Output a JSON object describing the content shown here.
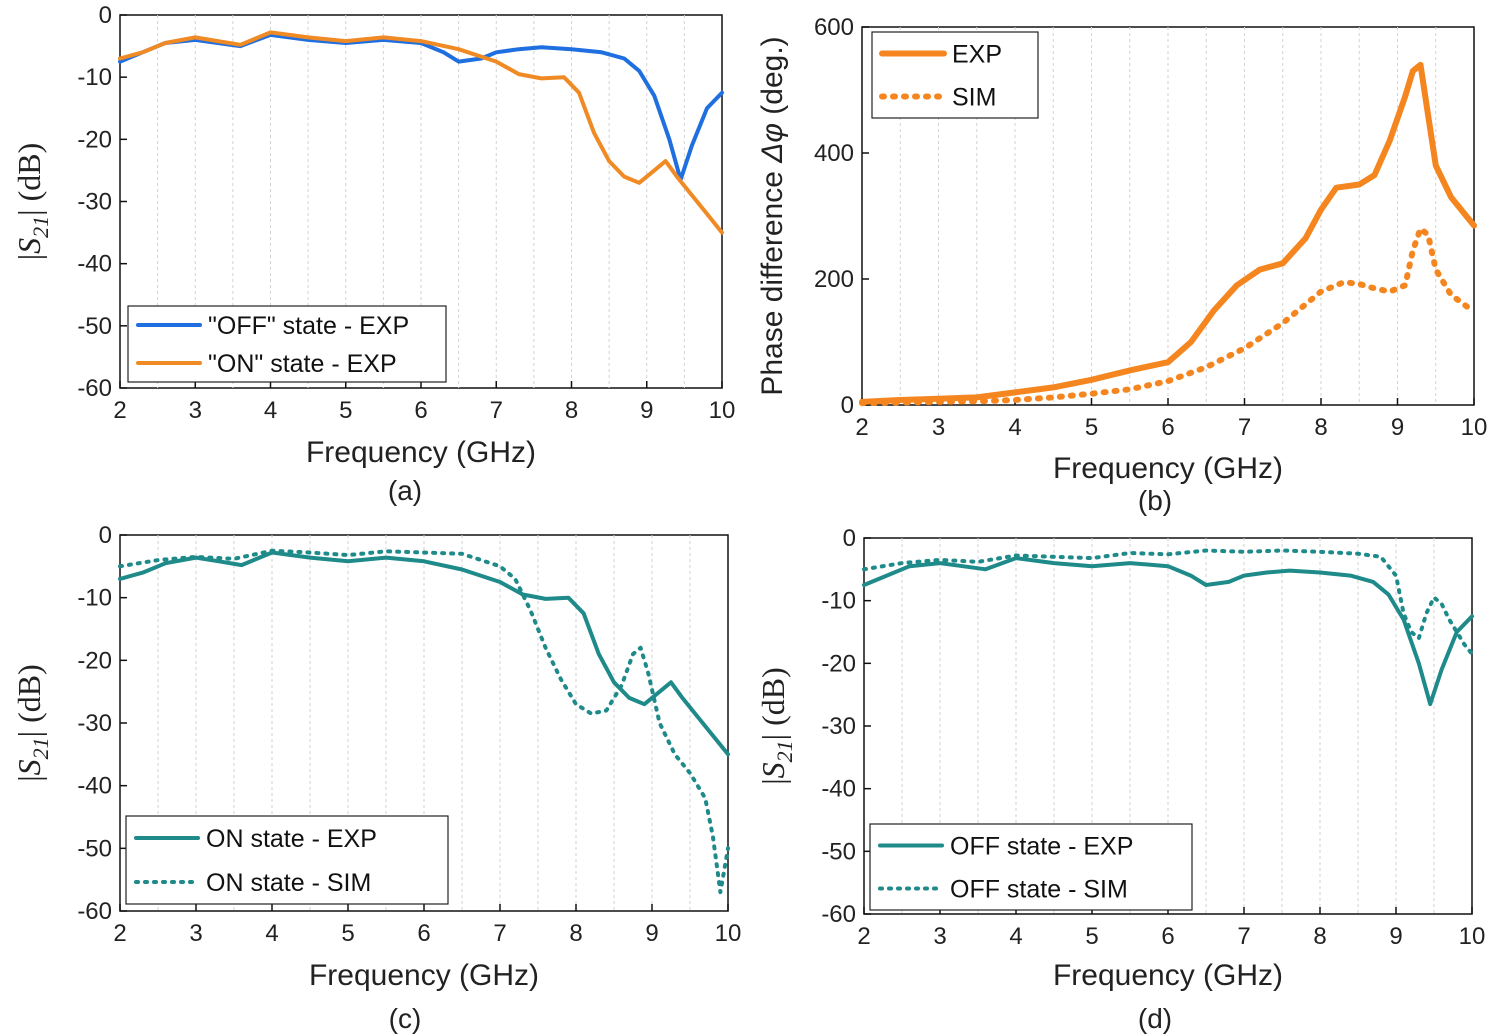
{
  "chart_data": [
    {
      "panel": "(a)",
      "type": "line",
      "xlabel": "Frequency (GHz)",
      "ylabel_prefix": "|",
      "ylabel_symbol": "S",
      "ylabel_sub": "21",
      "ylabel_suffix": "| (dB)",
      "xlim": [
        2,
        10
      ],
      "ylim": [
        -60,
        0
      ],
      "xticks": [
        "2",
        "3",
        "4",
        "5",
        "6",
        "7",
        "8",
        "9",
        "10"
      ],
      "yticks": [
        "0",
        "-10",
        "-20",
        "-30",
        "-40",
        "-50",
        "-60"
      ],
      "legend": "bottom-left",
      "series": [
        {
          "name": "\"OFF\" state - EXP",
          "color": "#1f6fe0",
          "style": "solid",
          "x": [
            2.0,
            2.3,
            2.6,
            3.0,
            3.3,
            3.6,
            4.0,
            4.5,
            5.0,
            5.5,
            6.0,
            6.3,
            6.5,
            6.8,
            7.0,
            7.3,
            7.6,
            8.0,
            8.4,
            8.7,
            8.9,
            9.1,
            9.3,
            9.45,
            9.6,
            9.8,
            10.0
          ],
          "y": [
            -7.5,
            -6,
            -4.5,
            -4,
            -4.5,
            -5,
            -3.2,
            -4,
            -4.5,
            -4,
            -4.5,
            -6,
            -7.5,
            -7,
            -6,
            -5.5,
            -5.2,
            -5.5,
            -6,
            -7,
            -9,
            -13,
            -20,
            -26.5,
            -21,
            -15,
            -12.5
          ]
        },
        {
          "name": "\"ON\" state - EXP",
          "color": "#f08a24",
          "style": "solid",
          "x": [
            2.0,
            2.3,
            2.6,
            3.0,
            3.3,
            3.6,
            4.0,
            4.5,
            5.0,
            5.5,
            6.0,
            6.5,
            7.0,
            7.3,
            7.6,
            7.9,
            8.1,
            8.3,
            8.5,
            8.7,
            8.9,
            9.1,
            9.25,
            9.4,
            9.6,
            9.8,
            10.0
          ],
          "y": [
            -7,
            -6,
            -4.5,
            -3.6,
            -4.2,
            -4.8,
            -2.8,
            -3.6,
            -4.2,
            -3.6,
            -4.2,
            -5.5,
            -7.5,
            -9.5,
            -10.2,
            -10,
            -12.5,
            -19,
            -23.5,
            -26,
            -27,
            -25,
            -23.5,
            -26,
            -29,
            -32,
            -35
          ]
        }
      ]
    },
    {
      "panel": "(b)",
      "type": "line",
      "xlabel": "Frequency (GHz)",
      "ylabel_prefix": "Phase difference ",
      "ylabel_symbol": "Δφ",
      "ylabel_sub": "",
      "ylabel_suffix": " (deg.)",
      "xlim": [
        2,
        10
      ],
      "ylim": [
        0,
        600
      ],
      "xticks": [
        "2",
        "3",
        "4",
        "5",
        "6",
        "7",
        "8",
        "9",
        "10"
      ],
      "yticks": [
        "0",
        "200",
        "400",
        "600"
      ],
      "legend": "top-left",
      "series": [
        {
          "name": "EXP",
          "color": "#f5861f",
          "style": "solid-thick",
          "x": [
            2.0,
            2.5,
            3.0,
            3.5,
            4.0,
            4.5,
            5.0,
            5.5,
            6.0,
            6.3,
            6.6,
            6.9,
            7.2,
            7.5,
            7.8,
            8.0,
            8.2,
            8.5,
            8.7,
            8.9,
            9.1,
            9.2,
            9.3,
            9.4,
            9.5,
            9.7,
            10.0
          ],
          "y": [
            5,
            8,
            10,
            12,
            20,
            28,
            40,
            55,
            68,
            100,
            150,
            190,
            215,
            225,
            265,
            310,
            345,
            350,
            365,
            420,
            490,
            530,
            540,
            460,
            380,
            330,
            285
          ]
        },
        {
          "name": "SIM",
          "color": "#f5861f",
          "style": "dotted-thick",
          "x": [
            2.0,
            2.5,
            3.0,
            3.5,
            4.0,
            4.5,
            5.0,
            5.5,
            6.0,
            6.5,
            7.0,
            7.5,
            8.0,
            8.3,
            8.5,
            8.7,
            8.9,
            9.1,
            9.2,
            9.3,
            9.4,
            9.5,
            9.7,
            10.0
          ],
          "y": [
            3,
            4,
            5,
            6,
            8,
            12,
            18,
            25,
            38,
            60,
            90,
            130,
            180,
            195,
            192,
            185,
            180,
            190,
            245,
            280,
            270,
            215,
            175,
            148
          ]
        }
      ]
    },
    {
      "panel": "(c)",
      "type": "line",
      "xlabel": "Frequency (GHz)",
      "ylabel_prefix": "|",
      "ylabel_symbol": "S",
      "ylabel_sub": "21",
      "ylabel_suffix": "| (dB)",
      "xlim": [
        2,
        10
      ],
      "ylim": [
        -60,
        0
      ],
      "xticks": [
        "2",
        "3",
        "4",
        "5",
        "6",
        "7",
        "8",
        "9",
        "10"
      ],
      "yticks": [
        "0",
        "-10",
        "-20",
        "-30",
        "-40",
        "-50",
        "-60"
      ],
      "legend": "bottom-left",
      "series": [
        {
          "name": "ON state - EXP",
          "color": "#1f8a8a",
          "style": "solid",
          "x": [
            2.0,
            2.3,
            2.6,
            3.0,
            3.3,
            3.6,
            4.0,
            4.5,
            5.0,
            5.5,
            6.0,
            6.5,
            7.0,
            7.3,
            7.6,
            7.9,
            8.1,
            8.3,
            8.5,
            8.7,
            8.9,
            9.1,
            9.25,
            9.4,
            9.6,
            9.8,
            10.0
          ],
          "y": [
            -7,
            -6,
            -4.5,
            -3.6,
            -4.2,
            -4.8,
            -2.8,
            -3.6,
            -4.2,
            -3.6,
            -4.2,
            -5.5,
            -7.5,
            -9.5,
            -10.2,
            -10,
            -12.5,
            -19,
            -23.5,
            -26,
            -27,
            -25,
            -23.5,
            -26,
            -29,
            -32,
            -35
          ]
        },
        {
          "name": "ON state - SIM",
          "color": "#1f8a8a",
          "style": "dotted",
          "x": [
            2.0,
            2.5,
            3.0,
            3.5,
            4.0,
            4.5,
            5.0,
            5.5,
            6.0,
            6.5,
            7.0,
            7.2,
            7.4,
            7.6,
            7.8,
            8.0,
            8.2,
            8.4,
            8.6,
            8.75,
            8.85,
            8.95,
            9.1,
            9.3,
            9.5,
            9.7,
            9.8,
            9.9,
            10.0
          ],
          "y": [
            -5,
            -4,
            -3.5,
            -3.8,
            -2.5,
            -2.8,
            -3.2,
            -2.6,
            -2.8,
            -3,
            -5,
            -7,
            -12,
            -18,
            -23,
            -27,
            -28.5,
            -28,
            -24,
            -19,
            -18,
            -22,
            -30,
            -35,
            -38,
            -42,
            -48,
            -57,
            -50
          ]
        }
      ]
    },
    {
      "panel": "(d)",
      "type": "line",
      "xlabel": "Frequency (GHz)",
      "ylabel_prefix": "|",
      "ylabel_symbol": "S",
      "ylabel_sub": "21",
      "ylabel_suffix": "| (dB)",
      "xlim": [
        2,
        10
      ],
      "ylim": [
        -60,
        0
      ],
      "xticks": [
        "2",
        "3",
        "4",
        "5",
        "6",
        "7",
        "8",
        "9",
        "10"
      ],
      "yticks": [
        "0",
        "-10",
        "-20",
        "-30",
        "-40",
        "-50",
        "-60"
      ],
      "legend": "bottom-left",
      "series": [
        {
          "name": "OFF state - EXP",
          "color": "#1f8a8a",
          "style": "solid",
          "x": [
            2.0,
            2.3,
            2.6,
            3.0,
            3.3,
            3.6,
            4.0,
            4.5,
            5.0,
            5.5,
            6.0,
            6.3,
            6.5,
            6.8,
            7.0,
            7.3,
            7.6,
            8.0,
            8.4,
            8.7,
            8.9,
            9.1,
            9.3,
            9.45,
            9.6,
            9.8,
            10.0
          ],
          "y": [
            -7.5,
            -6,
            -4.5,
            -4,
            -4.5,
            -5,
            -3.2,
            -4,
            -4.5,
            -4,
            -4.5,
            -6,
            -7.5,
            -7,
            -6,
            -5.5,
            -5.2,
            -5.5,
            -6,
            -7,
            -9,
            -13,
            -20,
            -26.5,
            -21,
            -15,
            -12.5
          ]
        },
        {
          "name": "OFF state - SIM",
          "color": "#1f8a8a",
          "style": "dotted",
          "x": [
            2.0,
            2.5,
            3.0,
            3.5,
            4.0,
            4.5,
            5.0,
            5.5,
            6.0,
            6.5,
            7.0,
            7.5,
            8.0,
            8.5,
            8.8,
            9.0,
            9.1,
            9.2,
            9.3,
            9.4,
            9.5,
            9.6,
            9.7,
            9.8,
            9.9,
            10.0
          ],
          "y": [
            -5,
            -4,
            -3.5,
            -3.8,
            -2.8,
            -3,
            -3.2,
            -2.4,
            -2.6,
            -2,
            -2.2,
            -2,
            -2.2,
            -2.5,
            -3,
            -6,
            -12,
            -15,
            -16,
            -12,
            -9.5,
            -10.5,
            -13,
            -15,
            -17,
            -18.5
          ]
        }
      ]
    }
  ]
}
